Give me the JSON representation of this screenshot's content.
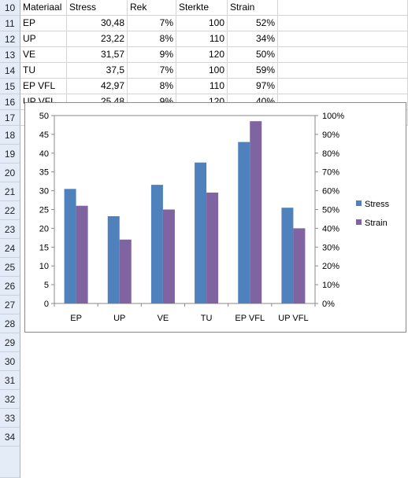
{
  "sheet": {
    "rows": [
      {
        "num": "10",
        "cells": [
          "Materiaal",
          "Stress",
          "Rek",
          "Sterkte",
          "Strain"
        ]
      },
      {
        "num": "11",
        "cells": [
          "EP",
          "30,48",
          "7%",
          "100",
          "52%"
        ]
      },
      {
        "num": "12",
        "cells": [
          "UP",
          "23,22",
          "8%",
          "110",
          "34%"
        ]
      },
      {
        "num": "13",
        "cells": [
          "VE",
          "31,57",
          "9%",
          "120",
          "50%"
        ]
      },
      {
        "num": "14",
        "cells": [
          "TU",
          "37,5",
          "7%",
          "100",
          "59%"
        ]
      },
      {
        "num": "15",
        "cells": [
          "EP VFL",
          "42,97",
          "8%",
          "110",
          "97%"
        ]
      },
      {
        "num": "16",
        "cells": [
          "UP VFL",
          "25,48",
          "9%",
          "120",
          "40%"
        ]
      },
      {
        "num": "17",
        "cells": [
          "",
          "",
          "",
          "",
          ""
        ]
      }
    ],
    "extra_row_numbers": [
      "18",
      "19",
      "20",
      "21",
      "22",
      "23",
      "24",
      "25",
      "26",
      "27",
      "28",
      "29",
      "30",
      "31",
      "32",
      "33",
      "34"
    ]
  },
  "chart_data": {
    "type": "bar",
    "categories": [
      "EP",
      "UP",
      "VE",
      "TU",
      "EP VFL",
      "UP VFL"
    ],
    "series": [
      {
        "name": "Stress",
        "values": [
          30.48,
          23.22,
          31.57,
          37.5,
          42.97,
          25.48
        ],
        "axis": "left",
        "color": "#4f81bd"
      },
      {
        "name": "Strain",
        "values": [
          0.52,
          0.34,
          0.5,
          0.59,
          0.97,
          0.4
        ],
        "axis": "right",
        "color": "#8064a2"
      }
    ],
    "y_left": {
      "ylim": [
        0,
        50
      ],
      "ticks": [
        "0",
        "5",
        "10",
        "15",
        "20",
        "25",
        "30",
        "35",
        "40",
        "45",
        "50"
      ]
    },
    "y_right": {
      "ylim": [
        0,
        1
      ],
      "ticks": [
        "0%",
        "10%",
        "20%",
        "30%",
        "40%",
        "50%",
        "60%",
        "70%",
        "80%",
        "90%",
        "100%"
      ]
    },
    "legend_position": "right",
    "grid": false
  }
}
